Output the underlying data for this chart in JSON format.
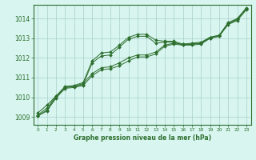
{
  "bg_color": "#d8f5f0",
  "plot_bg_color": "#d8f5f0",
  "grid_color": "#a8cfc8",
  "line_color": "#2d6e2d",
  "marker_color": "#2d6e2d",
  "xlabel": "Graphe pression niveau de la mer (hPa)",
  "xlabel_color": "#2d6e2d",
  "ylim": [
    1008.6,
    1014.7
  ],
  "xlim": [
    -0.5,
    23.5
  ],
  "yticks": [
    1009,
    1010,
    1011,
    1012,
    1013,
    1014
  ],
  "xticks": [
    0,
    1,
    2,
    3,
    4,
    5,
    6,
    7,
    8,
    9,
    10,
    11,
    12,
    13,
    14,
    15,
    16,
    17,
    18,
    19,
    20,
    21,
    22,
    23
  ],
  "series": [
    [
      1009.05,
      1009.35,
      1010.0,
      1010.5,
      1010.55,
      1010.7,
      1011.2,
      1011.5,
      1011.55,
      1011.75,
      1012.0,
      1012.15,
      1012.15,
      1012.3,
      1012.65,
      1012.75,
      1012.7,
      1012.75,
      1012.8,
      1013.05,
      1013.15,
      1013.75,
      1013.95,
      1014.5
    ],
    [
      1009.05,
      1009.3,
      1009.95,
      1010.45,
      1010.5,
      1010.6,
      1011.1,
      1011.4,
      1011.45,
      1011.6,
      1011.85,
      1012.05,
      1012.05,
      1012.2,
      1012.6,
      1012.7,
      1012.65,
      1012.7,
      1012.75,
      1013.0,
      1013.1,
      1013.7,
      1013.9,
      1014.45
    ],
    [
      1009.2,
      1009.6,
      1010.05,
      1010.55,
      1010.6,
      1010.75,
      1011.85,
      1012.25,
      1012.3,
      1012.65,
      1013.05,
      1013.2,
      1013.2,
      1012.9,
      1012.85,
      1012.85,
      1012.7,
      1012.7,
      1012.75,
      1013.05,
      1013.15,
      1013.8,
      1014.0,
      1014.55
    ],
    [
      1009.1,
      1009.45,
      1010.05,
      1010.5,
      1010.55,
      1010.65,
      1011.75,
      1012.1,
      1012.15,
      1012.55,
      1012.95,
      1013.1,
      1013.1,
      1012.75,
      1012.8,
      1012.8,
      1012.65,
      1012.65,
      1012.7,
      1013.0,
      1013.1,
      1013.75,
      1013.95,
      1014.5
    ]
  ]
}
